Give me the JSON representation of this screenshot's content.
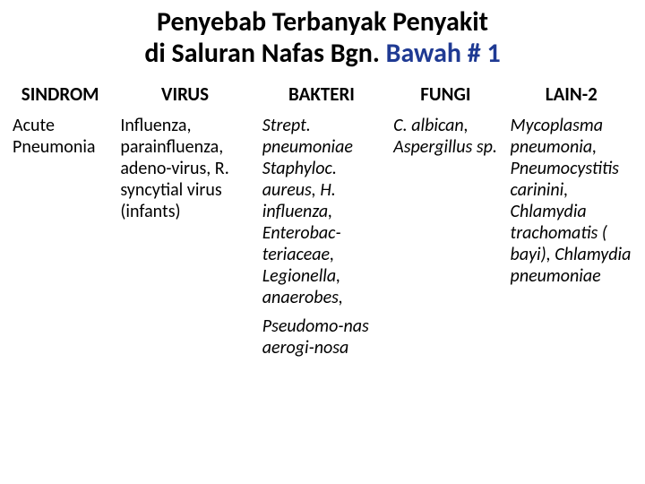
{
  "title": {
    "line1": "Penyebab Terbanyak Penyakit",
    "line2_a": "di Saluran Nafas Bgn.",
    "line2_b": "Bawah # 1"
  },
  "table": {
    "headers": {
      "sindrom": "SINDROM",
      "virus": "VIRUS",
      "bakteri": "BAKTERI",
      "fungi": "FUNGI",
      "lain": "LAIN-2"
    },
    "row1": {
      "sindrom": "Acute Pneumonia",
      "virus": "Influenza, parainfluenza, adeno-virus, R. syncytial virus (infants)",
      "bakteri": "Strept. pneumoniae Staphyloc. aureus, H. influenza, Enterobac-teriaceae, Legionella, anaerobes,",
      "fungi": "C. albican, Aspergillus sp.",
      "lain": "Mycoplasma pneumonia, Pneumocystitis carinini, Chlamydia trachomatis ( bayi), Chlamydia pneumoniae"
    },
    "row2": {
      "bakteri": "Pseudomo-nas aerogi-nosa"
    }
  },
  "styling": {
    "title_fontsize": 30,
    "title_fontweight": "bold",
    "header_fontsize": 21,
    "cell_fontsize": 20,
    "accent_color": "#1f3a93",
    "text_color": "#000000",
    "background_color": "#ffffff",
    "border_color": "#ffffff",
    "columns": {
      "sindrom_width": 120,
      "virus_width": 158,
      "bakteri_width": 146,
      "fungi_width": 130,
      "lain_width": 150
    }
  }
}
